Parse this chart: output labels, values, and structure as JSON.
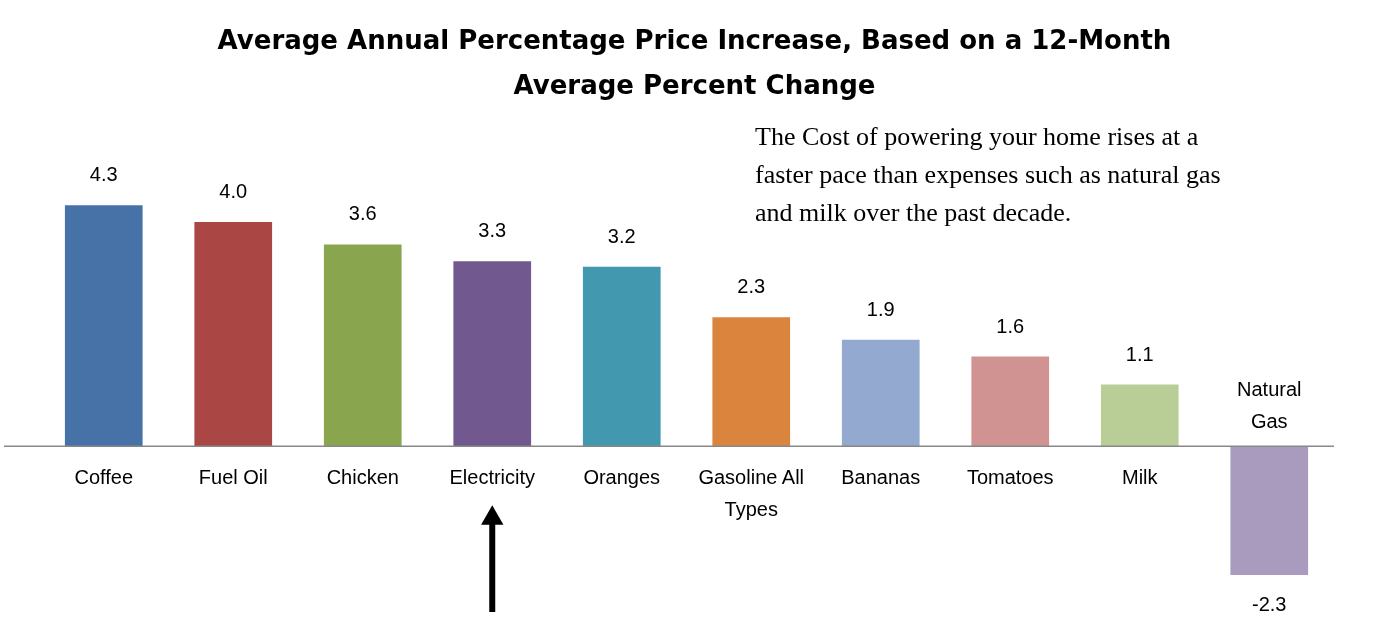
{
  "chart_data": {
    "type": "bar",
    "title": "Average Annual Percentage Price Increase, Based on a 12-Month Average Percent Change",
    "categories": [
      "Coffee",
      "Fuel Oil",
      "Chicken",
      "Electricity",
      "Oranges",
      "Gasoline All Types",
      "Bananas",
      "Tomatoes",
      "Milk",
      "Natural Gas"
    ],
    "values": [
      4.3,
      4.0,
      3.6,
      3.3,
      3.2,
      2.3,
      1.9,
      1.6,
      1.1,
      -2.3
    ],
    "colors": [
      "#4672a8",
      "#aa4644",
      "#89a54e",
      "#71588f",
      "#4198af",
      "#db843d",
      "#93a9cf",
      "#d19392",
      "#b9cd96",
      "#a99bbd"
    ],
    "value_labels": [
      "4.3",
      "4.0",
      "3.6",
      "3.3",
      "3.2",
      "2.3",
      "1.9",
      "1.6",
      "1.1",
      "-2.3"
    ],
    "annotations": [
      "The Cost of powering your home rises at a faster pace than expenses such as natural gas and milk over the past decade."
    ]
  }
}
